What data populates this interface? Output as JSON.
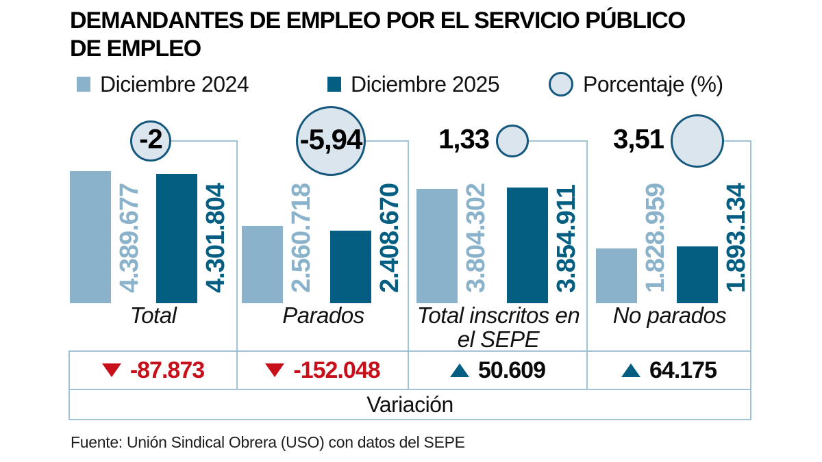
{
  "title": {
    "line1": "DEMANDANTES DE EMPLEO POR EL SERVICIO PÚBLICO",
    "line2": "DE EMPLEO"
  },
  "legend": [
    {
      "label": "Diciembre 2024",
      "swatch": "square-light"
    },
    {
      "label": "Diciembre 2025",
      "swatch": "square-dark"
    },
    {
      "label": "Porcentaje (%)",
      "swatch": "circle"
    }
  ],
  "chart_data": {
    "type": "bar",
    "title": "DEMANDANTES DE EMPLEO POR EL SERVICIO PÚBLICO DE EMPLEO",
    "categories": [
      "Total",
      "Parados",
      "Total inscritos en el SEPE",
      "No parados"
    ],
    "series": [
      {
        "name": "Diciembre 2024",
        "values": [
          4389677,
          2560718,
          3804302,
          1828959
        ]
      },
      {
        "name": "Diciembre 2025",
        "values": [
          4301804,
          2408670,
          3854911,
          1893134
        ]
      }
    ],
    "percent_change": [
      -2,
      -5.94,
      1.33,
      3.51
    ],
    "variation": [
      -87873,
      -152048,
      50609,
      64175
    ],
    "legend_position": "top",
    "grid": false
  },
  "groups": [
    {
      "label": "Total",
      "value_2024": "4.389.677",
      "value_2025": "4.301.804",
      "pct_label": "-2",
      "variation": "-87.873",
      "direction": "down"
    },
    {
      "label": "Parados",
      "value_2024": "2.560.718",
      "value_2025": "2.408.670",
      "pct_label": "-5,94",
      "variation": "-152.048",
      "direction": "down"
    },
    {
      "label": "Total inscritos en el SEPE",
      "value_2024": "3.804.302",
      "value_2025": "3.854.911",
      "pct_label": "1,33",
      "variation": "50.609",
      "direction": "up"
    },
    {
      "label": "No parados",
      "value_2024": "1.828.959",
      "value_2025": "1.893.134",
      "pct_label": "3,51",
      "variation": "64.175",
      "direction": "up"
    }
  ],
  "variation_row_label": "Variación",
  "footer": "Fuente: Unión Sindical Obrera (USO) con datos del SEPE",
  "colors": {
    "dec2024": "#8ab3cb",
    "dec2025": "#035e82",
    "bubble_fill": "#dbe5ee",
    "bubble_border": "#15587d",
    "line": "#9fc3d6",
    "negative": "#c8101b"
  }
}
